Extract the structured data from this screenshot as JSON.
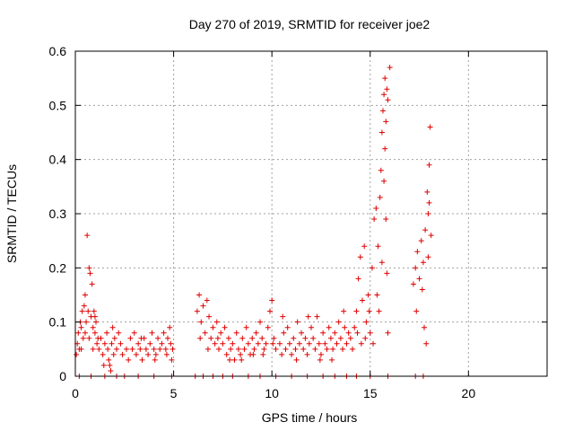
{
  "chart_data": {
    "type": "scatter",
    "title": "Day 270 of 2019, SRMTID for receiver joe2",
    "xlabel": "GPS time / hours",
    "ylabel": "SRMTID / TECUs",
    "xlim": [
      0,
      24
    ],
    "ylim": [
      0,
      0.6
    ],
    "xticks": [
      0,
      5,
      10,
      15,
      20
    ],
    "xtick_labels": [
      "0",
      "5",
      "10",
      "15",
      "20"
    ],
    "yticks": [
      0,
      0.1,
      0.2,
      0.3,
      0.4,
      0.5,
      0.6
    ],
    "ytick_labels": [
      "0",
      "0.1",
      "0.2",
      "0.3",
      "0.4",
      "0.5",
      "0.6"
    ],
    "grid": true,
    "marker": "plus",
    "color": "#e00000",
    "series": [
      {
        "name": "joe2",
        "points": [
          [
            0.05,
            0.04
          ],
          [
            0.1,
            0.06
          ],
          [
            0.15,
            0.08
          ],
          [
            0.2,
            0.05
          ],
          [
            0.25,
            0.1
          ],
          [
            0.3,
            0.09
          ],
          [
            0.35,
            0.12
          ],
          [
            0.4,
            0.07
          ],
          [
            0.45,
            0.13
          ],
          [
            0.5,
            0.15
          ],
          [
            0.55,
            0.1
          ],
          [
            0.6,
            0.26
          ],
          [
            0.65,
            0.12
          ],
          [
            0.7,
            0.2
          ],
          [
            0.75,
            0.19
          ],
          [
            0.8,
            0.11
          ],
          [
            0.85,
            0.17
          ],
          [
            0.9,
            0.09
          ],
          [
            0.95,
            0.12
          ],
          [
            1.0,
            0.08
          ],
          [
            1.05,
            0.1
          ],
          [
            1.1,
            0.06
          ],
          [
            1.15,
            0.07
          ],
          [
            0.3,
            0.05
          ],
          [
            0.5,
            0.08
          ],
          [
            0.7,
            0.07
          ],
          [
            0.9,
            0.05
          ],
          [
            1.0,
            0.11
          ],
          [
            1.2,
            0.05
          ],
          [
            1.3,
            0.07
          ],
          [
            1.4,
            0.04
          ],
          [
            1.5,
            0.06
          ],
          [
            1.6,
            0.08
          ],
          [
            1.7,
            0.03
          ],
          [
            1.75,
            0.02
          ],
          [
            1.8,
            0.01
          ],
          [
            1.85,
            0.06
          ],
          [
            1.9,
            0.09
          ],
          [
            2.0,
            0.07
          ],
          [
            2.1,
            0.05
          ],
          [
            2.2,
            0.08
          ],
          [
            2.3,
            0.06
          ],
          [
            2.4,
            0.04
          ],
          [
            1.45,
            0.02
          ],
          [
            1.65,
            0.05
          ],
          [
            1.95,
            0.04
          ],
          [
            2.6,
            0.05
          ],
          [
            2.7,
            0.03
          ],
          [
            2.8,
            0.07
          ],
          [
            2.9,
            0.05
          ],
          [
            3.0,
            0.08
          ],
          [
            3.1,
            0.04
          ],
          [
            3.2,
            0.06
          ],
          [
            3.3,
            0.05
          ],
          [
            3.4,
            0.03
          ],
          [
            3.5,
            0.07
          ],
          [
            3.6,
            0.05
          ],
          [
            3.7,
            0.04
          ],
          [
            3.8,
            0.06
          ],
          [
            3.9,
            0.08
          ],
          [
            4.0,
            0.05
          ],
          [
            4.1,
            0.04
          ],
          [
            4.2,
            0.07
          ],
          [
            4.3,
            0.05
          ],
          [
            4.4,
            0.06
          ],
          [
            4.5,
            0.08
          ],
          [
            4.6,
            0.05
          ],
          [
            4.7,
            0.07
          ],
          [
            4.8,
            0.09
          ],
          [
            4.85,
            0.06
          ],
          [
            4.9,
            0.03
          ],
          [
            4.95,
            0.05
          ],
          [
            3.35,
            0.07
          ],
          [
            4.05,
            0.03
          ],
          [
            4.65,
            0.04
          ],
          [
            6.2,
            0.12
          ],
          [
            6.3,
            0.15
          ],
          [
            6.4,
            0.1
          ],
          [
            6.5,
            0.13
          ],
          [
            6.6,
            0.08
          ],
          [
            6.7,
            0.14
          ],
          [
            6.8,
            0.11
          ],
          [
            6.9,
            0.07
          ],
          [
            7.0,
            0.09
          ],
          [
            7.1,
            0.06
          ],
          [
            7.2,
            0.1
          ],
          [
            7.3,
            0.05
          ],
          [
            7.4,
            0.08
          ],
          [
            7.5,
            0.06
          ],
          [
            7.6,
            0.09
          ],
          [
            7.7,
            0.04
          ],
          [
            7.8,
            0.07
          ],
          [
            7.9,
            0.05
          ],
          [
            8.0,
            0.06
          ],
          [
            8.1,
            0.03
          ],
          [
            8.2,
            0.08
          ],
          [
            8.3,
            0.05
          ],
          [
            8.4,
            0.04
          ],
          [
            8.5,
            0.07
          ],
          [
            8.6,
            0.05
          ],
          [
            8.7,
            0.09
          ],
          [
            8.8,
            0.06
          ],
          [
            8.9,
            0.04
          ],
          [
            9.0,
            0.07
          ],
          [
            9.1,
            0.05
          ],
          [
            9.2,
            0.08
          ],
          [
            9.3,
            0.06
          ],
          [
            9.4,
            0.1
          ],
          [
            9.5,
            0.07
          ],
          [
            9.6,
            0.05
          ],
          [
            9.7,
            0.06
          ],
          [
            9.8,
            0.09
          ],
          [
            9.9,
            0.12
          ],
          [
            10.0,
            0.14
          ],
          [
            10.1,
            0.07
          ],
          [
            10.2,
            0.05
          ],
          [
            6.35,
            0.07
          ],
          [
            6.75,
            0.05
          ],
          [
            7.25,
            0.07
          ],
          [
            7.85,
            0.03
          ],
          [
            8.45,
            0.03
          ],
          [
            9.05,
            0.04
          ],
          [
            9.55,
            0.04
          ],
          [
            10.05,
            0.06
          ],
          [
            10.4,
            0.06
          ],
          [
            10.5,
            0.04
          ],
          [
            10.6,
            0.08
          ],
          [
            10.7,
            0.05
          ],
          [
            10.8,
            0.09
          ],
          [
            10.9,
            0.06
          ],
          [
            11.0,
            0.04
          ],
          [
            11.1,
            0.07
          ],
          [
            11.2,
            0.05
          ],
          [
            11.3,
            0.1
          ],
          [
            11.4,
            0.06
          ],
          [
            11.5,
            0.08
          ],
          [
            11.6,
            0.05
          ],
          [
            11.7,
            0.07
          ],
          [
            11.8,
            0.04
          ],
          [
            11.9,
            0.06
          ],
          [
            12.0,
            0.09
          ],
          [
            12.1,
            0.07
          ],
          [
            12.2,
            0.05
          ],
          [
            12.3,
            0.11
          ],
          [
            12.4,
            0.06
          ],
          [
            12.5,
            0.04
          ],
          [
            12.6,
            0.08
          ],
          [
            12.7,
            0.06
          ],
          [
            12.8,
            0.05
          ],
          [
            12.9,
            0.09
          ],
          [
            13.0,
            0.07
          ],
          [
            13.1,
            0.05
          ],
          [
            13.2,
            0.08
          ],
          [
            13.3,
            0.06
          ],
          [
            13.4,
            0.1
          ],
          [
            13.5,
            0.07
          ],
          [
            13.6,
            0.05
          ],
          [
            13.7,
            0.09
          ],
          [
            13.8,
            0.06
          ],
          [
            13.9,
            0.08
          ],
          [
            14.0,
            0.07
          ],
          [
            14.1,
            0.05
          ],
          [
            14.2,
            0.09
          ],
          [
            10.55,
            0.11
          ],
          [
            11.25,
            0.03
          ],
          [
            11.85,
            0.11
          ],
          [
            12.45,
            0.03
          ],
          [
            13.05,
            0.03
          ],
          [
            13.65,
            0.12
          ],
          [
            14.3,
            0.12
          ],
          [
            14.4,
            0.18
          ],
          [
            14.5,
            0.22
          ],
          [
            14.6,
            0.14
          ],
          [
            14.7,
            0.24
          ],
          [
            14.8,
            0.1
          ],
          [
            14.9,
            0.15
          ],
          [
            15.0,
            0.08
          ],
          [
            15.1,
            0.2
          ],
          [
            15.2,
            0.29
          ],
          [
            15.3,
            0.31
          ],
          [
            15.4,
            0.24
          ],
          [
            15.5,
            0.33
          ],
          [
            15.55,
            0.38
          ],
          [
            15.6,
            0.45
          ],
          [
            15.65,
            0.49
          ],
          [
            15.7,
            0.52
          ],
          [
            15.75,
            0.55
          ],
          [
            15.8,
            0.47
          ],
          [
            15.85,
            0.53
          ],
          [
            15.9,
            0.51
          ],
          [
            16.0,
            0.57
          ],
          [
            14.35,
            0.08
          ],
          [
            14.55,
            0.06
          ],
          [
            14.75,
            0.07
          ],
          [
            14.95,
            0.12
          ],
          [
            15.15,
            0.06
          ],
          [
            15.35,
            0.15
          ],
          [
            15.45,
            0.12
          ],
          [
            15.6,
            0.21
          ],
          [
            15.7,
            0.36
          ],
          [
            15.75,
            0.42
          ],
          [
            15.8,
            0.29
          ],
          [
            15.85,
            0.19
          ],
          [
            15.9,
            0.08
          ],
          [
            17.2,
            0.17
          ],
          [
            17.3,
            0.2
          ],
          [
            17.35,
            0.12
          ],
          [
            17.4,
            0.23
          ],
          [
            17.5,
            0.18
          ],
          [
            17.6,
            0.25
          ],
          [
            17.7,
            0.21
          ],
          [
            17.75,
            0.09
          ],
          [
            17.8,
            0.27
          ],
          [
            17.85,
            0.06
          ],
          [
            17.9,
            0.34
          ],
          [
            17.95,
            0.3
          ],
          [
            18.0,
            0.39
          ],
          [
            18.05,
            0.46
          ],
          [
            18.1,
            0.26
          ],
          [
            17.65,
            0.16
          ],
          [
            17.95,
            0.22
          ],
          [
            18.0,
            0.32
          ],
          [
            0.2,
            0.0
          ],
          [
            0.8,
            0.0
          ],
          [
            1.5,
            0.0
          ],
          [
            2.1,
            0.0
          ],
          [
            2.5,
            0.0
          ],
          [
            3.2,
            0.0
          ],
          [
            4.0,
            0.0
          ],
          [
            4.9,
            0.0
          ],
          [
            6.1,
            0.0
          ],
          [
            6.5,
            0.0
          ],
          [
            7.0,
            0.0
          ],
          [
            7.5,
            0.0
          ],
          [
            8.0,
            0.0
          ],
          [
            8.8,
            0.0
          ],
          [
            9.4,
            0.0
          ],
          [
            10.2,
            0.0
          ],
          [
            11.0,
            0.0
          ],
          [
            11.8,
            0.0
          ],
          [
            12.6,
            0.0
          ],
          [
            13.2,
            0.0
          ],
          [
            13.8,
            0.0
          ],
          [
            14.3,
            0.0
          ],
          [
            15.0,
            0.0
          ],
          [
            15.9,
            0.0
          ],
          [
            17.3,
            0.0
          ],
          [
            17.7,
            0.0
          ]
        ]
      }
    ]
  }
}
